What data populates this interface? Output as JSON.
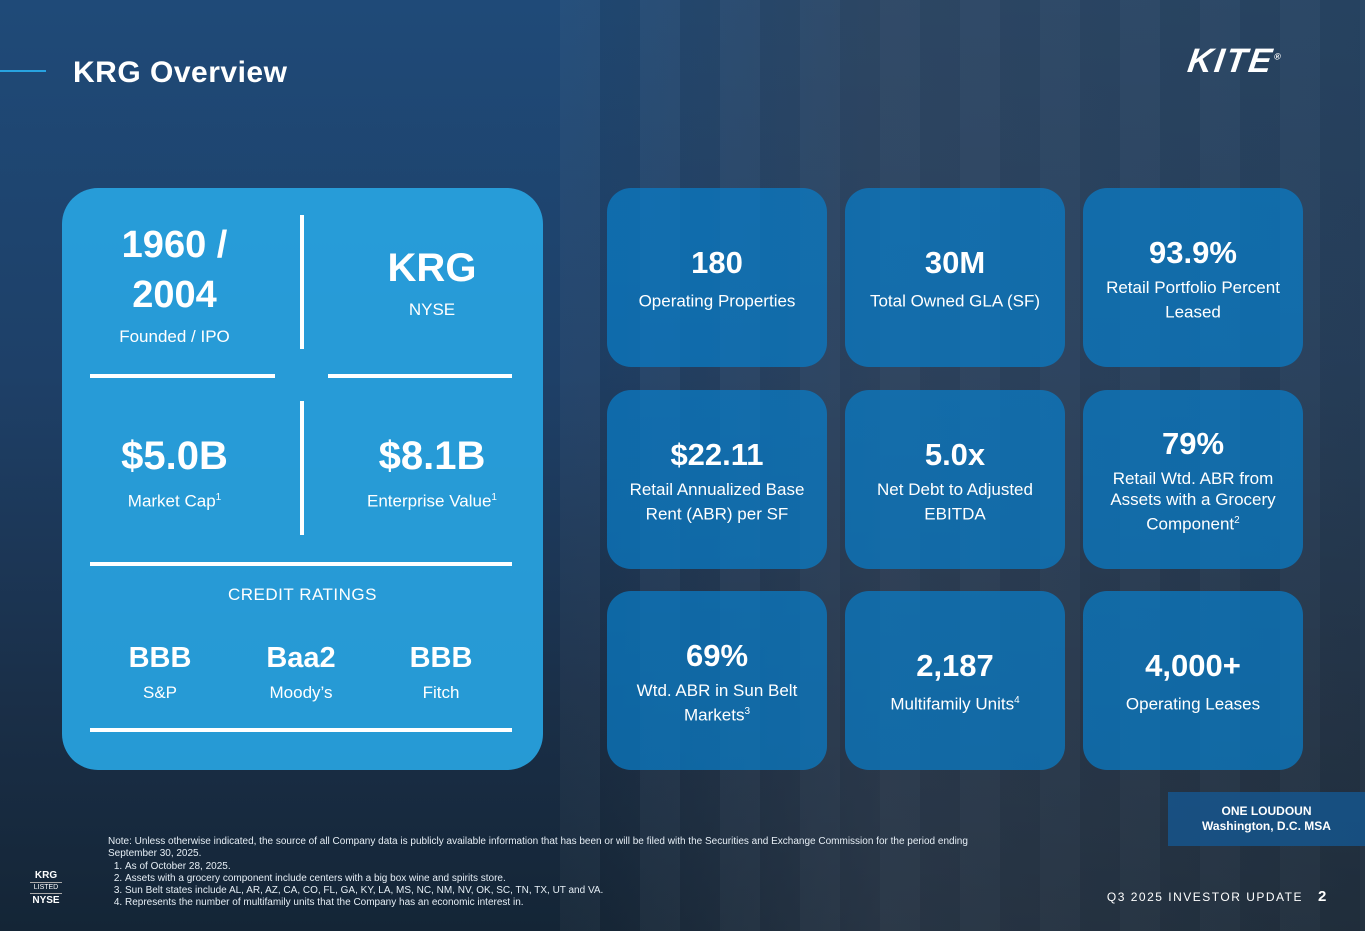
{
  "header": {
    "title": "KRG Overview",
    "logo": "KITE"
  },
  "overview": {
    "founded": {
      "value": "1960 / 2004",
      "label": "Founded / IPO"
    },
    "ticker": {
      "value": "KRG",
      "label": "NYSE"
    },
    "market_cap": {
      "value": "$5.0B",
      "label": "Market Cap",
      "sup": "1"
    },
    "enterprise_value": {
      "value": "$8.1B",
      "label": "Enterprise Value",
      "sup": "1"
    },
    "credit_title": "CREDIT RATINGS",
    "ratings": [
      {
        "value": "BBB",
        "agency": "S&P"
      },
      {
        "value": "Baa2",
        "agency": "Moody’s"
      },
      {
        "value": "BBB",
        "agency": "Fitch"
      }
    ]
  },
  "tiles": [
    {
      "value": "180",
      "label": "Operating Properties",
      "sup": ""
    },
    {
      "value": "30M",
      "label": "Total Owned GLA (SF)",
      "sup": ""
    },
    {
      "value": "93.9%",
      "label": "Retail Portfolio Percent Leased",
      "sup": ""
    },
    {
      "value": "$22.11",
      "label": "Retail Annualized Base Rent (ABR) per SF",
      "sup": ""
    },
    {
      "value": "5.0x",
      "label": "Net Debt to Adjusted EBITDA",
      "sup": ""
    },
    {
      "value": "79%",
      "label": "Retail Wtd. ABR from Assets with a Grocery Component",
      "sup": "2"
    },
    {
      "value": "69%",
      "label": "Wtd. ABR in Sun Belt Markets",
      "sup": "3"
    },
    {
      "value": "2,187",
      "label": "Multifamily Units",
      "sup": "4"
    },
    {
      "value": "4,000+",
      "label": "Operating Leases",
      "sup": ""
    }
  ],
  "caption": {
    "line1": "ONE LOUDOUN",
    "line2": "Washington, D.C. MSA"
  },
  "footer": {
    "text": "Q3 2025 INVESTOR UPDATE",
    "page": "2"
  },
  "listing": {
    "top": "KRG",
    "mid": "LISTED",
    "bottom": "NYSE"
  },
  "notes": {
    "intro": "Note:  Unless otherwise indicated, the source of all Company data is publicly available information that has been or will be filed with the Securities and Exchange Commission for the period ending September 30, 2025.",
    "items": [
      "As of October 28, 2025.",
      "Assets with a grocery component include centers with a big box wine and spirits store.",
      "Sun Belt states include AL, AR, AZ, CA, CO, FL, GA, KY, LA, MS, NC, NM, NV, OK, SC, TN, TX, UT and VA.",
      "Represents the number of multifamily units that the Company has an economic interest in."
    ]
  },
  "colors": {
    "card": "#28a3e0",
    "tile": "#0a7dc8",
    "accent": "#28a3e0"
  }
}
